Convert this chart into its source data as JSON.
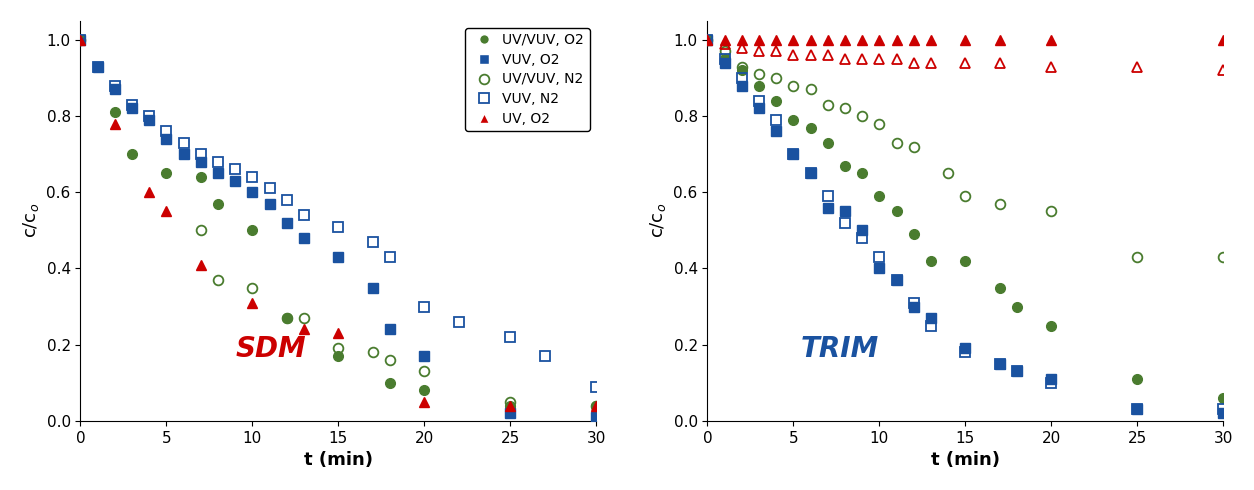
{
  "sdm": {
    "uv_vuv_o2": {
      "t": [
        0,
        2,
        3,
        5,
        7,
        8,
        10,
        12,
        15,
        18,
        20,
        25,
        30
      ],
      "c": [
        1.0,
        0.81,
        0.7,
        0.65,
        0.64,
        0.57,
        0.5,
        0.27,
        0.17,
        0.1,
        0.08,
        0.04,
        0.04
      ]
    },
    "vuv_o2": {
      "t": [
        0,
        1,
        2,
        3,
        4,
        5,
        6,
        7,
        8,
        9,
        10,
        11,
        12,
        13,
        15,
        17,
        18,
        20,
        25,
        30
      ],
      "c": [
        1.0,
        0.93,
        0.87,
        0.82,
        0.79,
        0.74,
        0.7,
        0.68,
        0.65,
        0.63,
        0.6,
        0.57,
        0.52,
        0.48,
        0.43,
        0.35,
        0.24,
        0.17,
        0.02,
        0.01
      ]
    },
    "uv_vuv_n2": {
      "t": [
        0,
        7,
        8,
        10,
        12,
        13,
        15,
        17,
        18,
        20,
        25,
        30
      ],
      "c": [
        1.0,
        0.5,
        0.37,
        0.35,
        0.27,
        0.27,
        0.19,
        0.18,
        0.16,
        0.13,
        0.05,
        0.04
      ]
    },
    "vuv_n2": {
      "t": [
        0,
        1,
        2,
        3,
        4,
        5,
        6,
        7,
        8,
        9,
        10,
        11,
        12,
        13,
        15,
        17,
        18,
        20,
        22,
        25,
        27,
        30
      ],
      "c": [
        1.0,
        0.93,
        0.88,
        0.83,
        0.8,
        0.76,
        0.73,
        0.7,
        0.68,
        0.66,
        0.64,
        0.61,
        0.58,
        0.54,
        0.51,
        0.47,
        0.43,
        0.3,
        0.26,
        0.22,
        0.17,
        0.09
      ]
    },
    "uv_o2": {
      "t": [
        0,
        2,
        4,
        5,
        7,
        10,
        13,
        15,
        20,
        25,
        30
      ],
      "c": [
        1.0,
        0.78,
        0.6,
        0.55,
        0.41,
        0.31,
        0.24,
        0.23,
        0.05,
        0.04,
        0.04
      ]
    }
  },
  "trim": {
    "uv_vuv_o2": {
      "t": [
        0,
        1,
        2,
        3,
        4,
        5,
        6,
        7,
        8,
        9,
        10,
        11,
        12,
        13,
        15,
        17,
        18,
        20,
        25,
        30
      ],
      "c": [
        1.0,
        0.95,
        0.92,
        0.88,
        0.84,
        0.79,
        0.77,
        0.73,
        0.67,
        0.65,
        0.59,
        0.55,
        0.49,
        0.42,
        0.42,
        0.35,
        0.3,
        0.25,
        0.11,
        0.06
      ]
    },
    "vuv_o2": {
      "t": [
        0,
        1,
        2,
        3,
        4,
        5,
        6,
        7,
        8,
        9,
        10,
        11,
        12,
        13,
        15,
        17,
        18,
        20,
        25,
        30
      ],
      "c": [
        1.0,
        0.94,
        0.88,
        0.82,
        0.76,
        0.7,
        0.65,
        0.56,
        0.55,
        0.5,
        0.4,
        0.37,
        0.3,
        0.27,
        0.19,
        0.15,
        0.13,
        0.11,
        0.03,
        0.02
      ]
    },
    "uv_vuv_n2": {
      "t": [
        0,
        1,
        2,
        3,
        4,
        5,
        6,
        7,
        8,
        9,
        10,
        11,
        12,
        14,
        15,
        17,
        20,
        25,
        30
      ],
      "c": [
        1.0,
        0.97,
        0.93,
        0.91,
        0.9,
        0.88,
        0.87,
        0.83,
        0.82,
        0.8,
        0.78,
        0.73,
        0.72,
        0.65,
        0.59,
        0.57,
        0.55,
        0.43,
        0.43
      ]
    },
    "vuv_n2": {
      "t": [
        0,
        1,
        2,
        3,
        4,
        5,
        6,
        7,
        8,
        9,
        10,
        11,
        12,
        13,
        15,
        17,
        18,
        20,
        25,
        30
      ],
      "c": [
        1.0,
        0.95,
        0.9,
        0.84,
        0.79,
        0.7,
        0.65,
        0.59,
        0.52,
        0.48,
        0.43,
        0.37,
        0.31,
        0.25,
        0.18,
        0.15,
        0.13,
        0.1,
        0.03,
        0.03
      ]
    },
    "uv_o2_filled": {
      "t": [
        0,
        1,
        2,
        3,
        4,
        5,
        6,
        7,
        8,
        9,
        10,
        11,
        12,
        13,
        15,
        17,
        20,
        30
      ],
      "c": [
        1.0,
        1.0,
        1.0,
        1.0,
        1.0,
        1.0,
        1.0,
        1.0,
        1.0,
        1.0,
        1.0,
        1.0,
        1.0,
        1.0,
        1.0,
        1.0,
        1.0,
        1.0
      ]
    },
    "uv_n2_open": {
      "t": [
        0,
        1,
        2,
        3,
        4,
        5,
        6,
        7,
        8,
        9,
        10,
        11,
        12,
        13,
        15,
        17,
        20,
        25,
        30
      ],
      "c": [
        1.0,
        0.99,
        0.98,
        0.97,
        0.97,
        0.96,
        0.96,
        0.96,
        0.95,
        0.95,
        0.95,
        0.95,
        0.94,
        0.94,
        0.94,
        0.94,
        0.93,
        0.93,
        0.92
      ]
    }
  },
  "colors": {
    "green": "#4a7c2f",
    "blue": "#1a52a0",
    "red": "#cc0000"
  },
  "label_sdm": "SDM",
  "label_trim": "TRIM",
  "xlabel": "t (min)",
  "ylabel": "c/c$_o$",
  "xlim": [
    0,
    30
  ],
  "ylim": [
    0.0,
    1.05
  ],
  "xticks": [
    0,
    5,
    10,
    15,
    20,
    25,
    30
  ],
  "yticks": [
    0.0,
    0.2,
    0.4,
    0.6,
    0.8,
    1.0
  ]
}
